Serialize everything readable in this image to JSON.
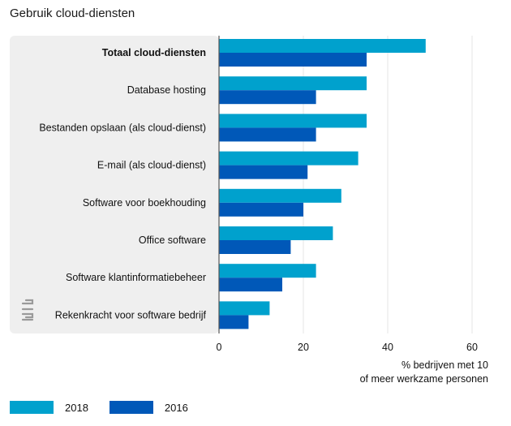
{
  "chart_data": {
    "type": "bar",
    "orientation": "horizontal",
    "title": "Gebruik cloud-diensten",
    "categories": [
      "Totaal cloud-diensten",
      "Database hosting",
      "Bestanden opslaan (als cloud-dienst)",
      "E-mail (als cloud-dienst)",
      "Software voor boekhouding",
      "Office software",
      "Software klantinformatiebeheer",
      "Rekenkracht voor software bedrijf"
    ],
    "bold_category_index": 0,
    "series": [
      {
        "name": "2018",
        "color": "#00a1cd",
        "values": [
          49,
          35,
          35,
          33,
          29,
          27,
          23,
          12
        ]
      },
      {
        "name": "2016",
        "color": "#0058b8",
        "values": [
          35,
          23,
          23,
          21,
          20,
          17,
          15,
          7
        ]
      }
    ],
    "xlim": [
      0,
      60
    ],
    "xticks": [
      "0",
      "20",
      "40",
      "60"
    ],
    "xlabel_lines": [
      "% bedrijven met 10",
      "of meer werkzame personen"
    ],
    "grid": true,
    "legend_position": "bottom-left"
  }
}
